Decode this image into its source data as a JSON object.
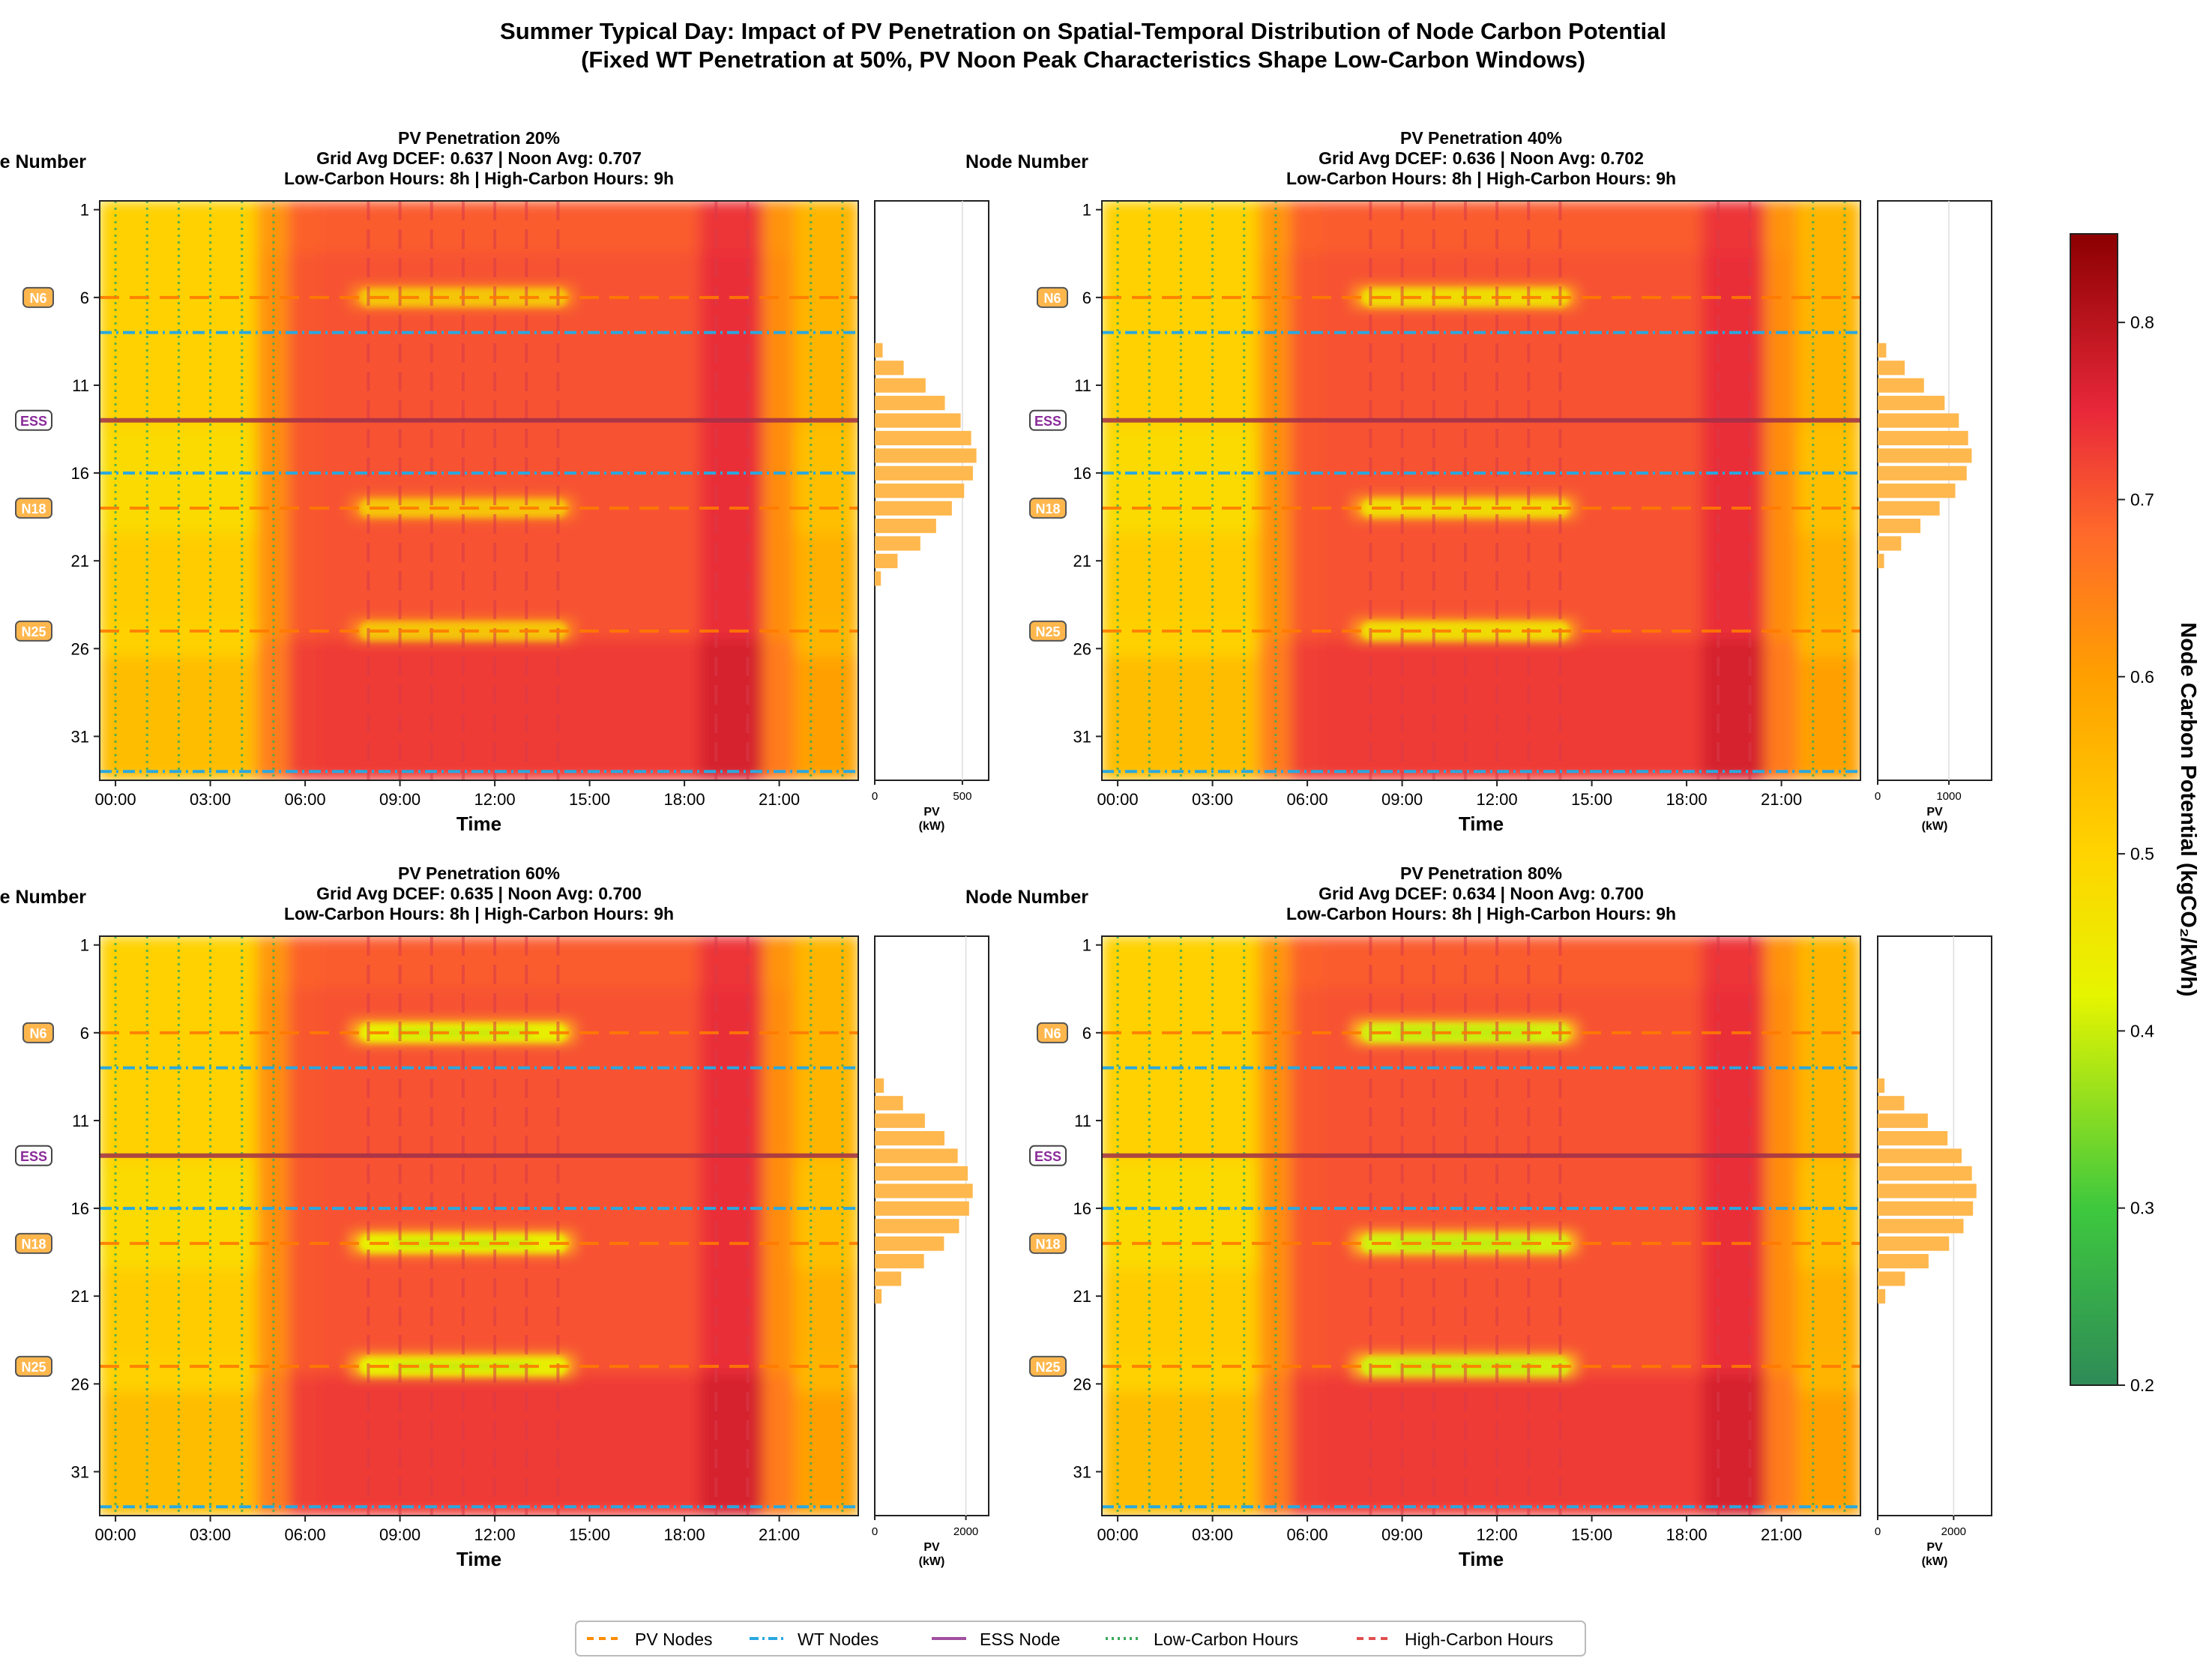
{
  "title_line1": "Summer Typical Day: Impact of PV Penetration on Spatial-Temporal Distribution of Node Carbon Potential",
  "title_line2": "(Fixed WT Penetration at 50%, PV Noon Peak Characteristics Shape Low-Carbon Windows)",
  "colorbar": {
    "label": "Node Carbon Potential (kgCO₂/kWh)",
    "min": 0.2,
    "max": 0.85,
    "ticks": [
      "0.2",
      "0.3",
      "0.4",
      "0.5",
      "0.6",
      "0.7",
      "0.8"
    ],
    "colors": [
      "#2e8b57",
      "#3ec83e",
      "#e6f500",
      "#ffd400",
      "#ffa000",
      "#ff6a2a",
      "#e8283a",
      "#8b0000"
    ]
  },
  "legend": [
    {
      "label": "PV Nodes",
      "color": "#ff8c00",
      "style": "dashed"
    },
    {
      "label": "WT Nodes",
      "color": "#29a8e0",
      "style": "dashdot"
    },
    {
      "label": "ESS Node",
      "color": "#a050a0",
      "style": "solid"
    },
    {
      "label": "Low-Carbon Hours",
      "color": "#3aaa5a",
      "style": "dotted"
    },
    {
      "label": "High-Carbon Hours",
      "color": "#e05050",
      "style": "dashed"
    }
  ],
  "chart_data": [
    {
      "type": "heatmap",
      "title": "PV Penetration 20%",
      "subtitle1": "Grid Avg DCEF: 0.637 | Noon Avg: 0.707",
      "subtitle2": "Low-Carbon Hours: 8h | High-Carbon Hours: 9h",
      "xlabel": "Time",
      "ylabel": "Node Number",
      "x_ticks": [
        "00:00",
        "03:00",
        "06:00",
        "09:00",
        "12:00",
        "15:00",
        "18:00",
        "21:00"
      ],
      "y_ticks": [
        "1",
        "6",
        "11",
        "16",
        "21",
        "26",
        "31"
      ],
      "node_tags": [
        "N6",
        "ESS",
        "N18",
        "N25"
      ],
      "pv_nodes": [
        6,
        18,
        25
      ],
      "wt_nodes": [
        8,
        16,
        33
      ],
      "ess_node": 13,
      "low_carbon_hours": [
        0,
        1,
        2,
        3,
        4,
        5,
        22,
        23
      ],
      "high_carbon_hours": [
        8,
        9,
        10,
        11,
        12,
        13,
        14,
        19,
        20
      ],
      "pv_penetration": 0.2,
      "pv_xlabel": "PV\n(kW)",
      "pv_ticks": [
        "0",
        "500"
      ],
      "pv_xmax": 650,
      "pv_profile": [
        {
          "node": 9,
          "kW": 45
        },
        {
          "node": 10,
          "kW": 165
        },
        {
          "node": 11,
          "kW": 290
        },
        {
          "node": 12,
          "kW": 400
        },
        {
          "node": 13,
          "kW": 490
        },
        {
          "node": 14,
          "kW": 550
        },
        {
          "node": 15,
          "kW": 580
        },
        {
          "node": 16,
          "kW": 560
        },
        {
          "node": 17,
          "kW": 510
        },
        {
          "node": 18,
          "kW": 440
        },
        {
          "node": 19,
          "kW": 350
        },
        {
          "node": 20,
          "kW": 260
        },
        {
          "node": 21,
          "kW": 130
        },
        {
          "node": 22,
          "kW": 35
        }
      ]
    },
    {
      "type": "heatmap",
      "title": "PV Penetration 40%",
      "subtitle1": "Grid Avg DCEF: 0.636 | Noon Avg: 0.702",
      "subtitle2": "Low-Carbon Hours: 8h | High-Carbon Hours: 9h",
      "xlabel": "Time",
      "ylabel": "Node Number",
      "x_ticks": [
        "00:00",
        "03:00",
        "06:00",
        "09:00",
        "12:00",
        "15:00",
        "18:00",
        "21:00"
      ],
      "y_ticks": [
        "1",
        "6",
        "11",
        "16",
        "21",
        "26",
        "31"
      ],
      "node_tags": [
        "N6",
        "ESS",
        "N18",
        "N25"
      ],
      "pv_nodes": [
        6,
        18,
        25
      ],
      "wt_nodes": [
        8,
        16,
        33
      ],
      "ess_node": 13,
      "low_carbon_hours": [
        0,
        1,
        2,
        3,
        4,
        5,
        22,
        23
      ],
      "high_carbon_hours": [
        8,
        9,
        10,
        11,
        12,
        13,
        14,
        19,
        20
      ],
      "pv_penetration": 0.4,
      "pv_xlabel": "PV\n(kW)",
      "pv_ticks": [
        "0",
        "1000"
      ],
      "pv_xmax": 1600,
      "pv_profile": [
        {
          "node": 9,
          "kW": 120
        },
        {
          "node": 10,
          "kW": 380
        },
        {
          "node": 11,
          "kW": 650
        },
        {
          "node": 12,
          "kW": 940
        },
        {
          "node": 13,
          "kW": 1140
        },
        {
          "node": 14,
          "kW": 1270
        },
        {
          "node": 15,
          "kW": 1320
        },
        {
          "node": 16,
          "kW": 1250
        },
        {
          "node": 17,
          "kW": 1090
        },
        {
          "node": 18,
          "kW": 870
        },
        {
          "node": 19,
          "kW": 600
        },
        {
          "node": 20,
          "kW": 330
        },
        {
          "node": 21,
          "kW": 90
        }
      ]
    },
    {
      "type": "heatmap",
      "title": "PV Penetration 60%",
      "subtitle1": "Grid Avg DCEF: 0.635 | Noon Avg: 0.700",
      "subtitle2": "Low-Carbon Hours: 8h | High-Carbon Hours: 9h",
      "xlabel": "Time",
      "ylabel": "Node Number",
      "x_ticks": [
        "00:00",
        "03:00",
        "06:00",
        "09:00",
        "12:00",
        "15:00",
        "18:00",
        "21:00"
      ],
      "y_ticks": [
        "1",
        "6",
        "11",
        "16",
        "21",
        "26",
        "31"
      ],
      "node_tags": [
        "N6",
        "ESS",
        "N18",
        "N25"
      ],
      "pv_nodes": [
        6,
        18,
        25
      ],
      "wt_nodes": [
        8,
        16,
        33
      ],
      "ess_node": 13,
      "low_carbon_hours": [
        0,
        1,
        2,
        3,
        4,
        5,
        22,
        23
      ],
      "high_carbon_hours": [
        8,
        9,
        10,
        11,
        12,
        13,
        14,
        19,
        20
      ],
      "pv_penetration": 0.6,
      "pv_xlabel": "PV\n(kW)",
      "pv_ticks": [
        "0",
        "2000"
      ],
      "pv_xmax": 2500,
      "pv_profile": [
        {
          "node": 9,
          "kW": 200
        },
        {
          "node": 10,
          "kW": 620
        },
        {
          "node": 11,
          "kW": 1100
        },
        {
          "node": 12,
          "kW": 1530
        },
        {
          "node": 13,
          "kW": 1820
        },
        {
          "node": 14,
          "kW": 2040
        },
        {
          "node": 15,
          "kW": 2150
        },
        {
          "node": 16,
          "kW": 2070
        },
        {
          "node": 17,
          "kW": 1850
        },
        {
          "node": 18,
          "kW": 1520
        },
        {
          "node": 19,
          "kW": 1080
        },
        {
          "node": 20,
          "kW": 580
        },
        {
          "node": 21,
          "kW": 150
        }
      ]
    },
    {
      "type": "heatmap",
      "title": "PV Penetration 80%",
      "subtitle1": "Grid Avg DCEF: 0.634 | Noon Avg: 0.700",
      "subtitle2": "Low-Carbon Hours: 8h | High-Carbon Hours: 9h",
      "xlabel": "Time",
      "ylabel": "Node Number",
      "x_ticks": [
        "00:00",
        "03:00",
        "06:00",
        "09:00",
        "12:00",
        "15:00",
        "18:00",
        "21:00"
      ],
      "y_ticks": [
        "1",
        "6",
        "11",
        "16",
        "21",
        "26",
        "31"
      ],
      "node_tags": [
        "N6",
        "ESS",
        "N18",
        "N25"
      ],
      "pv_nodes": [
        6,
        18,
        25
      ],
      "wt_nodes": [
        8,
        16,
        33
      ],
      "ess_node": 13,
      "low_carbon_hours": [
        0,
        1,
        2,
        3,
        4,
        5,
        22,
        23
      ],
      "high_carbon_hours": [
        8,
        9,
        10,
        11,
        12,
        13,
        14,
        19,
        20
      ],
      "pv_penetration": 0.8,
      "pv_xlabel": "PV\n(kW)",
      "pv_ticks": [
        "0",
        "2000"
      ],
      "pv_xmax": 3000,
      "pv_profile": [
        {
          "node": 9,
          "kW": 180
        },
        {
          "node": 10,
          "kW": 700
        },
        {
          "node": 11,
          "kW": 1320
        },
        {
          "node": 12,
          "kW": 1840
        },
        {
          "node": 13,
          "kW": 2210
        },
        {
          "node": 14,
          "kW": 2480
        },
        {
          "node": 15,
          "kW": 2600
        },
        {
          "node": 16,
          "kW": 2510
        },
        {
          "node": 17,
          "kW": 2260
        },
        {
          "node": 18,
          "kW": 1880
        },
        {
          "node": 19,
          "kW": 1340
        },
        {
          "node": 20,
          "kW": 720
        },
        {
          "node": 21,
          "kW": 200
        }
      ]
    }
  ]
}
